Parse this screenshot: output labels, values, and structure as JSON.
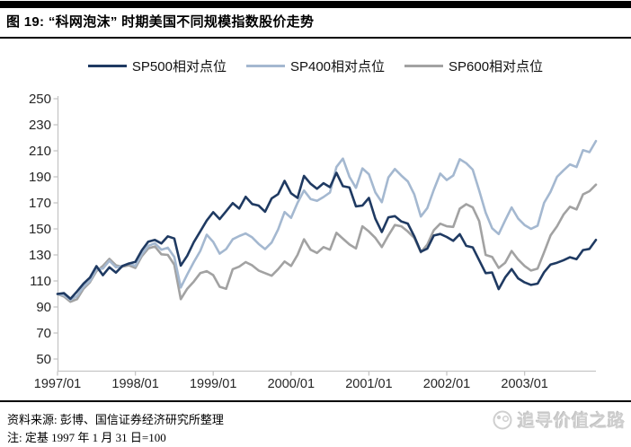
{
  "header": {
    "title": "图 19: “科网泡沫” 时期美国不同规模指数股价走势"
  },
  "footer": {
    "source": "资料来源: 彭博、国信证券经济研究所整理",
    "note": "注: 定基 1997 年 1 月 31 日=100",
    "watermark": "追寻价值之路"
  },
  "colors": {
    "sp500": "#1f3a62",
    "sp400": "#a4b8d0",
    "sp600": "#a2a2a2",
    "axis": "#c6c6c6",
    "tick_text": "#262626",
    "rule": "#000000",
    "watermark": "#cfcfcf"
  },
  "chart_data": {
    "type": "line",
    "title": "图 19: “科网泡沫” 时期美国不同规模指数股价走势",
    "xlabel": "",
    "ylabel": "",
    "ylim": [
      50,
      250
    ],
    "y_ticks": [
      50,
      70,
      90,
      110,
      130,
      150,
      170,
      190,
      210,
      230,
      250
    ],
    "grid": false,
    "legend_position": "top",
    "x_tick_labels": [
      "1997/01",
      "1998/01",
      "1999/01",
      "2000/01",
      "2001/01",
      "2002/01",
      "2003/01"
    ],
    "x_months": [
      "1997/01",
      "1997/02",
      "1997/03",
      "1997/04",
      "1997/05",
      "1997/06",
      "1997/07",
      "1997/08",
      "1997/09",
      "1997/10",
      "1997/11",
      "1997/12",
      "1998/01",
      "1998/02",
      "1998/03",
      "1998/04",
      "1998/05",
      "1998/06",
      "1998/07",
      "1998/08",
      "1998/09",
      "1998/10",
      "1998/11",
      "1998/12",
      "1999/01",
      "1999/02",
      "1999/03",
      "1999/04",
      "1999/05",
      "1999/06",
      "1999/07",
      "1999/08",
      "1999/09",
      "1999/10",
      "1999/11",
      "1999/12",
      "2000/01",
      "2000/02",
      "2000/03",
      "2000/04",
      "2000/05",
      "2000/06",
      "2000/07",
      "2000/08",
      "2000/09",
      "2000/10",
      "2000/11",
      "2000/12",
      "2001/01",
      "2001/02",
      "2001/03",
      "2001/04",
      "2001/05",
      "2001/06",
      "2001/07",
      "2001/08",
      "2001/09",
      "2001/10",
      "2001/11",
      "2001/12",
      "2002/01",
      "2002/02",
      "2002/03",
      "2002/04",
      "2002/05",
      "2002/06",
      "2002/07",
      "2002/08",
      "2002/09",
      "2002/10",
      "2002/11",
      "2002/12",
      "2003/01",
      "2003/02",
      "2003/03",
      "2003/04",
      "2003/05",
      "2003/06",
      "2003/07",
      "2003/08",
      "2003/09",
      "2003/10",
      "2003/11",
      "2003/12"
    ],
    "base_note": "1997/01/31 = 100",
    "series": [
      {
        "id": "sp500",
        "name": "SP500相对点位",
        "color": "#1f3a62",
        "values": [
          100,
          100.6,
          96.3,
          101.9,
          107.9,
          112.6,
          121.4,
          114.4,
          120.5,
          116.4,
          121.5,
          123.4,
          124.7,
          133.5,
          140.2,
          141.5,
          138.8,
          144.3,
          142.6,
          121.8,
          129.4,
          139.8,
          148.1,
          156.4,
          162.8,
          157.5,
          163.6,
          169.8,
          165.6,
          174.7,
          169.1,
          167.9,
          163.2,
          173.4,
          176.7,
          186.9,
          177.4,
          173.8,
          190.7,
          184.7,
          180.8,
          185.1,
          182.1,
          193.1,
          182.8,
          181.8,
          167.3,
          167.9,
          173.8,
          157.8,
          147.6,
          158.9,
          159.8,
          155.7,
          154.1,
          144.3,
          132.4,
          134.9,
          144.9,
          146.1,
          143.8,
          140.8,
          145.9,
          137,
          135.8,
          125.9,
          116,
          116.5,
          103.7,
          112.7,
          119.1,
          112,
          108.9,
          107,
          107.9,
          116.7,
          122.6,
          124,
          125.9,
          128.2,
          126.7,
          133.7,
          134.6,
          141.5
        ]
      },
      {
        "id": "sp400",
        "name": "SP400相对点位",
        "color": "#a4b8d0",
        "values": [
          100,
          99,
          95.5,
          98.5,
          105.5,
          110,
          119,
          119.5,
          125.5,
          120.5,
          121.5,
          123.5,
          121.5,
          130.5,
          137,
          139,
          134,
          135.5,
          128.5,
          105,
          115,
          124.5,
          133,
          145.5,
          140,
          131,
          134.5,
          142,
          144.5,
          146.5,
          143.5,
          138.5,
          134.5,
          139.5,
          149.5,
          163,
          158.5,
          170,
          179.5,
          173,
          171.5,
          174.5,
          178,
          197.5,
          204,
          190,
          181.5,
          196.5,
          192,
          178,
          170.5,
          189.5,
          196,
          191,
          186.5,
          176.5,
          159.5,
          166,
          180,
          192.5,
          187.5,
          191,
          203.5,
          200.5,
          195.5,
          179.5,
          162.5,
          150.5,
          146,
          156.5,
          166.5,
          158,
          153,
          150,
          152.5,
          170,
          178.5,
          190,
          195,
          199.5,
          197.5,
          210.5,
          209,
          217.5
        ]
      },
      {
        "id": "sp600",
        "name": "SP600相对点位",
        "color": "#a2a2a2",
        "values": [
          100,
          98,
          94,
          96,
          104,
          109,
          117.5,
          121.5,
          127,
          122,
          121,
          122,
          120,
          129,
          135,
          136.5,
          130.5,
          130,
          122.5,
          96,
          104,
          109.5,
          116,
          117.5,
          114.5,
          105.5,
          104,
          119,
          121,
          124.5,
          122,
          118,
          116,
          114,
          119,
          125,
          121.5,
          130,
          142,
          134,
          131.5,
          136,
          134,
          147,
          142.5,
          138,
          135,
          152,
          148,
          143,
          136,
          145,
          153,
          152,
          148,
          143,
          132,
          138,
          149,
          154,
          152,
          151.5,
          165.5,
          169,
          166.5,
          156,
          130,
          128.5,
          120,
          124,
          133,
          126.5,
          121.5,
          118,
          119.5,
          132,
          145,
          152,
          161,
          167,
          165,
          176.5,
          179,
          184
        ]
      }
    ]
  }
}
